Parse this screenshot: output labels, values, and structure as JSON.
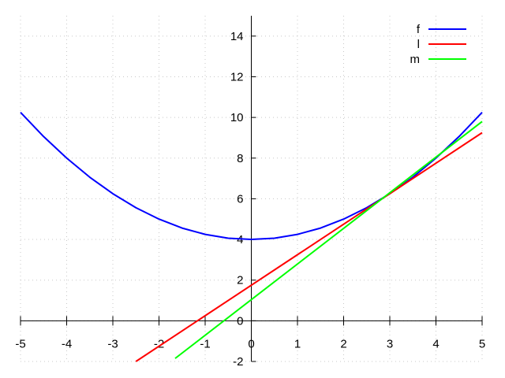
{
  "chart_data": {
    "type": "line",
    "xlim": [
      -5,
      5
    ],
    "ylim": [
      -2,
      15
    ],
    "xticks": [
      -5,
      -4,
      -3,
      -2,
      -1,
      0,
      1,
      2,
      3,
      4,
      5
    ],
    "yticks": [
      -2,
      0,
      2,
      4,
      6,
      8,
      10,
      12,
      14
    ],
    "xtick_labels": [
      "-5",
      "-4",
      "-3",
      "-2",
      "-1",
      "0",
      "1",
      "2",
      "3",
      "4",
      "5"
    ],
    "ytick_labels": [
      "-2",
      "0",
      "2",
      "4",
      "6",
      "8",
      "10",
      "12",
      "14"
    ],
    "grid": true,
    "legend_position": "top-right",
    "series": [
      {
        "name": "f",
        "color": "#0000ff",
        "x": [
          -5,
          -4.5,
          -4,
          -3.5,
          -3,
          -2.5,
          -2,
          -1.5,
          -1,
          -0.5,
          0,
          0.5,
          1,
          1.5,
          2,
          2.5,
          3,
          3.5,
          4,
          4.5,
          5
        ],
        "y": [
          10.25,
          9.06,
          8.0,
          7.06,
          6.25,
          5.56,
          5.0,
          4.56,
          4.25,
          4.06,
          4.0,
          4.06,
          4.25,
          4.56,
          5.0,
          5.56,
          6.25,
          7.06,
          8.0,
          9.06,
          10.25
        ]
      },
      {
        "name": "l",
        "color": "#ff0000",
        "x": [
          -2.5,
          5
        ],
        "y": [
          -2.0,
          9.25
        ]
      },
      {
        "name": "m",
        "color": "#00ff00",
        "x": [
          -1.65,
          5
        ],
        "y": [
          -1.85,
          9.8
        ]
      }
    ]
  }
}
